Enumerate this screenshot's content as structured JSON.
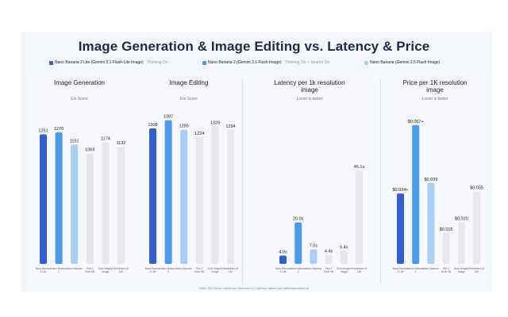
{
  "title": "Image Generation & Image Editing vs. Latency & Price",
  "legend": [
    {
      "name": "Nano Banana 2 Lite (Gemini 3.1 Flash-Lite Image)",
      "note": "Thinking On",
      "color": "#2f5fd0"
    },
    {
      "name": "Nano Banana 2 (Gemini 3.1 Flash Image)",
      "note": "Thinking On + Search On",
      "color": "#4a9af0"
    },
    {
      "name": "Nano Banana (Gemini 2.5 Flash Image)",
      "note": "",
      "color": "#a8cff4"
    }
  ],
  "footnote": "Note: Elo Score values per lmarena.ai  |  Latency values per artificialanalysis.ai",
  "chart_data": [
    {
      "type": "bar",
      "title": "Image Generation",
      "subtitle": "Elo Score",
      "categories": [
        "Nano Banana 2 Lite",
        "Nano Banana 2",
        "Nano Banana",
        "Flux 2 Klein 9B",
        "Grok Imagine Image",
        "Seedream v5 Lite"
      ],
      "values": [
        1251,
        1270,
        1151,
        1069,
        1174,
        1132
      ],
      "labels": [
        "1251",
        "1270",
        "1151",
        "1069",
        "1174",
        "1132"
      ],
      "colors": [
        "#2f5fd0",
        "#4a9af0",
        "#a8cff4",
        "#e8e8ea",
        "#e8e8ea",
        "#e8e8ea"
      ],
      "ylim": [
        0,
        1400
      ]
    },
    {
      "type": "bar",
      "title": "Image Editing",
      "subtitle": "Elo Score",
      "categories": [
        "Nano Banana 2 Lite",
        "Nano Banana 2",
        "Nano Banana",
        "Flux 2 Klein 9B",
        "Grok Imagine Image",
        "Seedream v5 Lite"
      ],
      "values": [
        1308,
        1387,
        1295,
        1224,
        1329,
        1294
      ],
      "labels": [
        "1308",
        "1387",
        "1295",
        "1224",
        "1329",
        "1294"
      ],
      "colors": [
        "#2f5fd0",
        "#4a9af0",
        "#a8cff4",
        "#e8e8ea",
        "#e8e8ea",
        "#e8e8ea"
      ],
      "ylim": [
        0,
        1400
      ]
    },
    {
      "type": "bar",
      "title": "Latency per 1k resolution image",
      "subtitle": "Lower is better",
      "categories": [
        "Nano Banana 2 Lite",
        "Nano Banana 2",
        "Nano Banana",
        "Flux 2 Klein 9B",
        "Grok Imagine Image",
        "Seedream v5 Lite"
      ],
      "values": [
        4.0,
        20.0,
        7.0,
        4.4,
        6.4,
        45.1
      ],
      "labels": [
        "4.0s",
        "20.0s",
        "7.0s",
        "4.4s",
        "6.4s",
        "45.1s"
      ],
      "colors": [
        "#2f5fd0",
        "#4a9af0",
        "#a8cff4",
        "#e8e8ea",
        "#e8e8ea",
        "#e8e8ea"
      ],
      "ylim": [
        0,
        70
      ]
    },
    {
      "type": "bar",
      "title": "Price per 1K resolution image",
      "subtitle": "Lower is better",
      "categories": [
        "Nano Banana 2 Lite",
        "Nano Banana 2",
        "Nano Banana",
        "Flux 2 Klein 9B",
        "Grok Imagine Image",
        "Seedream v5 Lite"
      ],
      "values": [
        0.034,
        0.067,
        0.039,
        0.015,
        0.02,
        0.035
      ],
      "labels": [
        "$0.034+",
        "$0.067+",
        "$0.039",
        "$0.015",
        "$0.020",
        "$0.035"
      ],
      "colors": [
        "#2f5fd0",
        "#4a9af0",
        "#a8cff4",
        "#e8e8ea",
        "#e8e8ea",
        "#e8e8ea"
      ],
      "ylim": [
        0,
        0.07
      ]
    }
  ]
}
